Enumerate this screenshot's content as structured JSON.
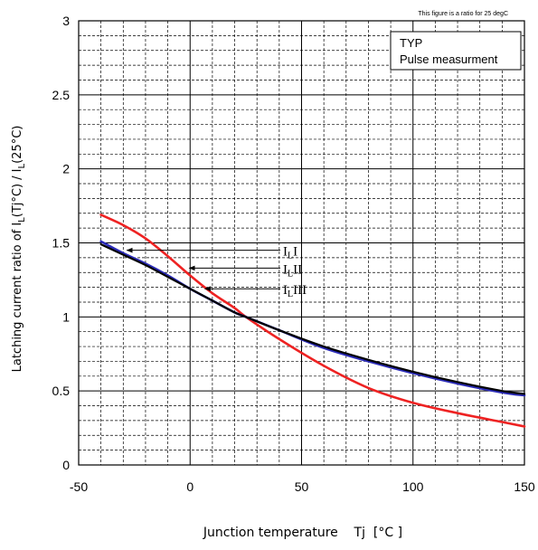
{
  "chart_data": {
    "type": "line",
    "note": "This figure is a ratio for 25 degC",
    "legend_box": [
      "TYP",
      "Pulse measurment"
    ],
    "legend_placement": "top-right",
    "ylabel": {
      "text_a": "Latching current ratio of I",
      "sub_a": "L",
      "text_b": "(Tj°C) / I",
      "sub_b": "L",
      "text_c": "(25°C)"
    },
    "xlabel": "Junction temperature    Tj  [°C ]",
    "xlim": [
      -50,
      150
    ],
    "ylim": [
      0,
      3
    ],
    "xticks": [
      -50,
      0,
      50,
      100,
      150
    ],
    "yticks": [
      0,
      0.5,
      1,
      1.5,
      2,
      2.5,
      3
    ],
    "x_minor_step": 10,
    "y_minor_step": 0.1,
    "grid": true,
    "series": [
      {
        "name": "I",
        "label_sub": "L",
        "label_roman": "I",
        "color": "#000000",
        "x": [
          -40,
          -30,
          -20,
          -10,
          0,
          10,
          20,
          25,
          40,
          60,
          80,
          100,
          120,
          140,
          150
        ],
        "y": [
          1.49,
          1.42,
          1.35,
          1.27,
          1.19,
          1.11,
          1.03,
          1.0,
          0.91,
          0.8,
          0.71,
          0.63,
          0.56,
          0.5,
          0.48
        ]
      },
      {
        "name": "II",
        "label_sub": "L",
        "label_roman": "II",
        "color": "#ee2222",
        "x": [
          -40,
          -30,
          -20,
          -10,
          0,
          10,
          20,
          25,
          40,
          60,
          80,
          100,
          120,
          140,
          150
        ],
        "y": [
          1.69,
          1.62,
          1.53,
          1.41,
          1.28,
          1.16,
          1.06,
          1.0,
          0.85,
          0.67,
          0.52,
          0.42,
          0.35,
          0.29,
          0.26
        ]
      },
      {
        "name": "III",
        "label_sub": "L",
        "label_roman": "III",
        "color": "#2b2bb8",
        "x": [
          -40,
          -30,
          -20,
          -10,
          0,
          10,
          20,
          25,
          40,
          60,
          80,
          100,
          120,
          140,
          150
        ],
        "y": [
          1.51,
          1.43,
          1.36,
          1.28,
          1.19,
          1.11,
          1.03,
          1.0,
          0.91,
          0.79,
          0.7,
          0.62,
          0.55,
          0.49,
          0.47
        ]
      }
    ]
  }
}
